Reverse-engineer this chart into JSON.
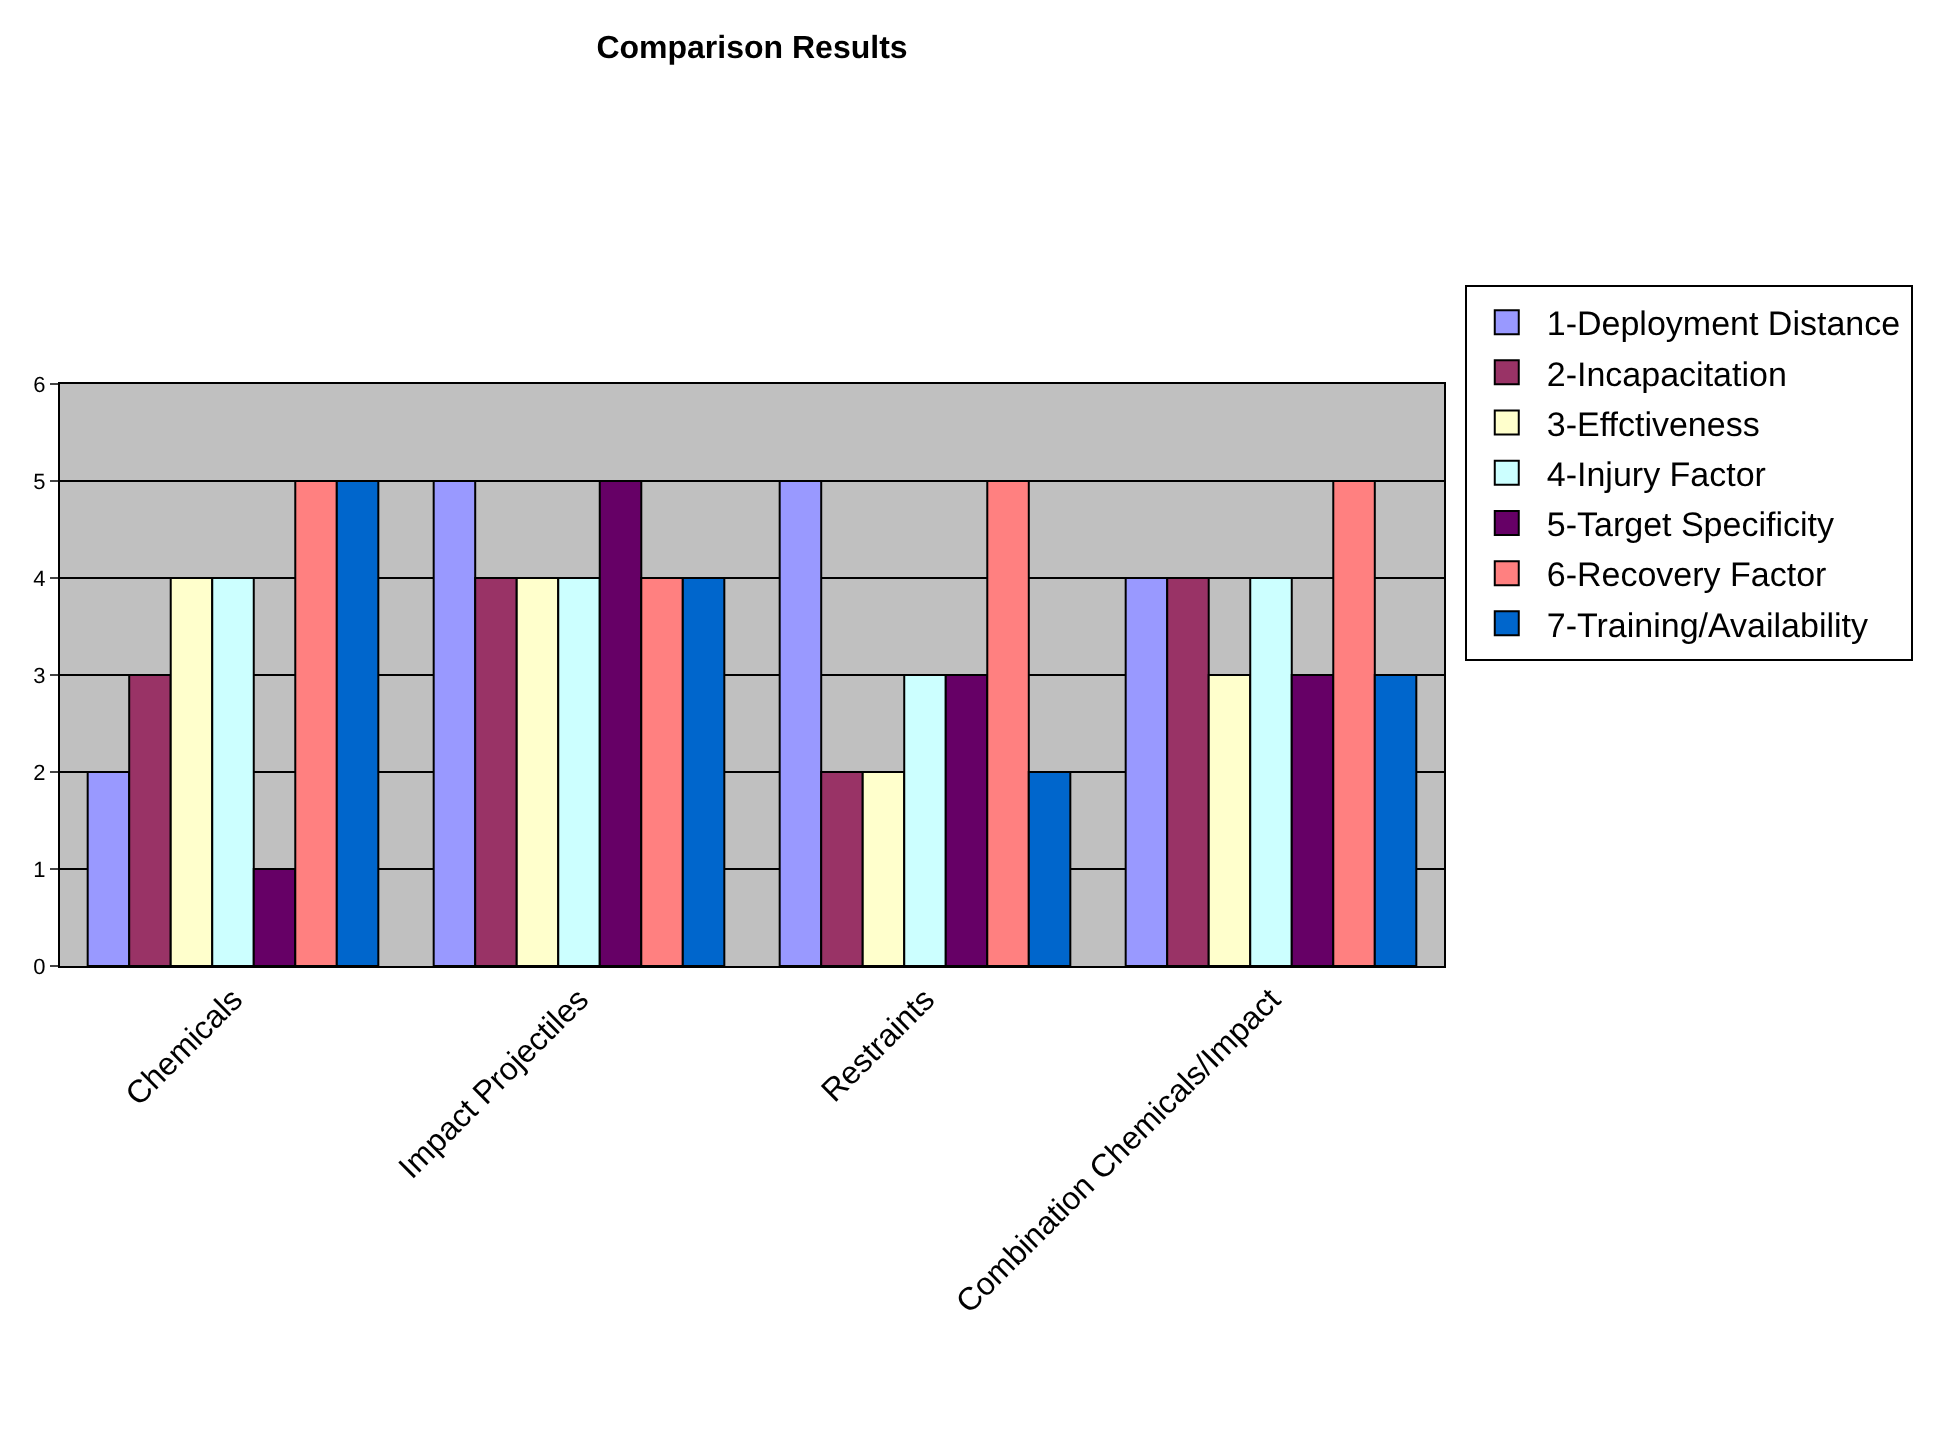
{
  "chart_data": {
    "type": "bar",
    "title": "Comparison Results",
    "categories": [
      "Chemicals",
      "Impact Projectiles",
      "Restraints",
      "Combination Chemicals/Impact"
    ],
    "series": [
      {
        "name": "1-Deployment Distance",
        "color": "#9999ff",
        "values": [
          2,
          5,
          5,
          4
        ]
      },
      {
        "name": "2-Incapacitation",
        "color": "#993366",
        "values": [
          3,
          4,
          2,
          4
        ]
      },
      {
        "name": "3-Effctiveness",
        "color": "#ffffcc",
        "values": [
          4,
          4,
          2,
          3
        ]
      },
      {
        "name": "4-Injury Factor",
        "color": "#ccffff",
        "values": [
          4,
          4,
          3,
          4
        ]
      },
      {
        "name": "5-Target Specificity",
        "color": "#660066",
        "values": [
          1,
          5,
          3,
          3
        ]
      },
      {
        "name": "6-Recovery Factor",
        "color": "#ff8080",
        "values": [
          5,
          4,
          5,
          5
        ]
      },
      {
        "name": "7-Training/Availability",
        "color": "#0066cc",
        "values": [
          5,
          4,
          2,
          3
        ]
      }
    ],
    "ylim": [
      0,
      6
    ],
    "yticks": [
      0,
      1,
      2,
      3,
      4,
      5,
      6
    ],
    "grid": "y",
    "legend": "right"
  }
}
